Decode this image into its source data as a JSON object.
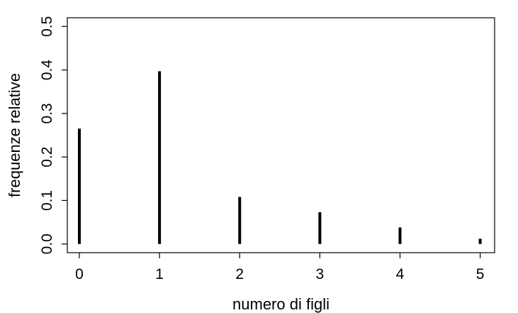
{
  "chart_data": {
    "type": "bar",
    "title": "",
    "xlabel": "numero di figli",
    "ylabel": "frequenze relative",
    "categories": [
      "0",
      "1",
      "2",
      "3",
      "4",
      "5"
    ],
    "x": [
      0,
      1,
      2,
      3,
      4,
      5
    ],
    "values": [
      0.265,
      0.397,
      0.108,
      0.073,
      0.038,
      0.012
    ],
    "xlim": [
      -0.15,
      5.18
    ],
    "ylim": [
      -0.02,
      0.52
    ],
    "xticks": [
      0,
      1,
      2,
      3,
      4,
      5
    ],
    "yticks": [
      0.0,
      0.1,
      0.2,
      0.3,
      0.4,
      0.5
    ],
    "ytick_labels": [
      "0.0",
      "0.1",
      "0.2",
      "0.3",
      "0.4",
      "0.5"
    ],
    "grid": false,
    "legend": "none",
    "bar_color": "#000000"
  }
}
